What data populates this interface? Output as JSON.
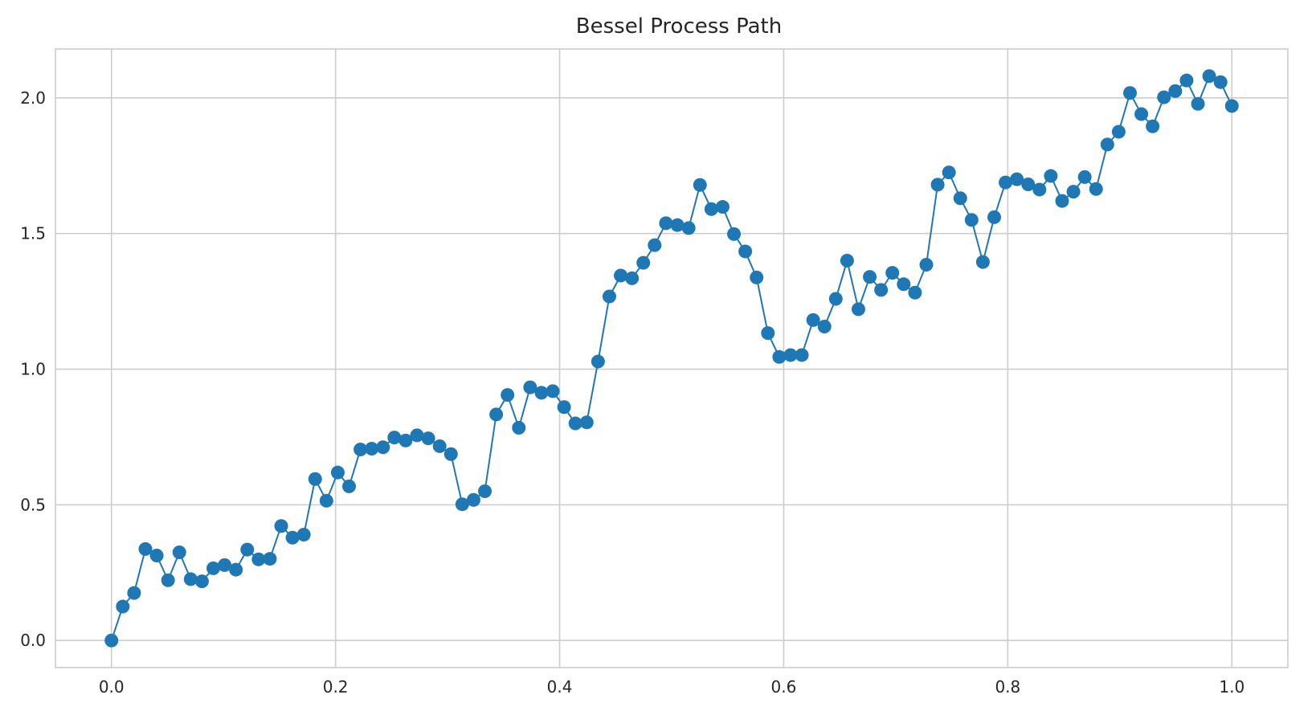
{
  "chart_data": {
    "type": "line",
    "title": "Bessel Process Path",
    "xlabel": "",
    "ylabel": "",
    "xlim": [
      -0.05,
      1.05
    ],
    "ylim": [
      -0.1,
      2.18
    ],
    "grid": true,
    "legend": "none",
    "x_ticks": [
      0.0,
      0.2,
      0.4,
      0.6,
      0.8,
      1.0
    ],
    "x_tick_labels": [
      "0.0",
      "0.2",
      "0.4",
      "0.6",
      "0.8",
      "1.0"
    ],
    "y_ticks": [
      0.0,
      0.5,
      1.0,
      1.5,
      2.0
    ],
    "y_tick_labels": [
      "0.0",
      "0.5",
      "1.0",
      "1.5",
      "2.0"
    ],
    "colors": {
      "series": "#1f77b4",
      "grid": "#cccccc",
      "text": "#262626"
    },
    "series": [
      {
        "marker": "circle",
        "x": [
          0.0,
          0.0101,
          0.0202,
          0.0303,
          0.0404,
          0.0505,
          0.0606,
          0.0707,
          0.0808,
          0.0909,
          0.101,
          0.1111,
          0.1212,
          0.1313,
          0.1414,
          0.1515,
          0.1616,
          0.1717,
          0.1818,
          0.1919,
          0.202,
          0.2121,
          0.2222,
          0.2323,
          0.2424,
          0.2525,
          0.2626,
          0.2727,
          0.2828,
          0.2929,
          0.303,
          0.3131,
          0.3232,
          0.3333,
          0.3434,
          0.3535,
          0.3636,
          0.3737,
          0.3838,
          0.3939,
          0.404,
          0.4141,
          0.4242,
          0.4343,
          0.4444,
          0.4545,
          0.4646,
          0.4747,
          0.4848,
          0.4949,
          0.5051,
          0.5152,
          0.5253,
          0.5354,
          0.5455,
          0.5556,
          0.5657,
          0.5758,
          0.5859,
          0.596,
          0.6061,
          0.6162,
          0.6263,
          0.6364,
          0.6465,
          0.6566,
          0.6667,
          0.6768,
          0.6869,
          0.697,
          0.7071,
          0.7172,
          0.7273,
          0.7374,
          0.7475,
          0.7576,
          0.7677,
          0.7778,
          0.7879,
          0.798,
          0.8081,
          0.8182,
          0.8283,
          0.8384,
          0.8485,
          0.8586,
          0.8687,
          0.8788,
          0.8889,
          0.899,
          0.9091,
          0.9192,
          0.9293,
          0.9394,
          0.9495,
          0.9596,
          0.9697,
          0.9798,
          0.9899,
          1.0
        ],
        "y": [
          0.0,
          0.125,
          0.175,
          0.337,
          0.313,
          0.222,
          0.325,
          0.226,
          0.218,
          0.266,
          0.278,
          0.261,
          0.335,
          0.299,
          0.301,
          0.422,
          0.379,
          0.39,
          0.595,
          0.515,
          0.619,
          0.568,
          0.704,
          0.707,
          0.712,
          0.748,
          0.737,
          0.756,
          0.745,
          0.716,
          0.687,
          0.502,
          0.518,
          0.55,
          0.833,
          0.905,
          0.784,
          0.933,
          0.913,
          0.919,
          0.86,
          0.8,
          0.804,
          1.028,
          1.268,
          1.345,
          1.335,
          1.392,
          1.457,
          1.538,
          1.531,
          1.52,
          1.679,
          1.59,
          1.598,
          1.498,
          1.434,
          1.338,
          1.133,
          1.045,
          1.052,
          1.052,
          1.181,
          1.157,
          1.259,
          1.4,
          1.221,
          1.34,
          1.292,
          1.355,
          1.313,
          1.282,
          1.385,
          1.68,
          1.725,
          1.63,
          1.55,
          1.395,
          1.56,
          1.688,
          1.7,
          1.681,
          1.662,
          1.712,
          1.62,
          1.654,
          1.708,
          1.664,
          1.828,
          1.875,
          2.018,
          1.94,
          1.895,
          2.002,
          2.025,
          2.064,
          1.978,
          2.08,
          2.058,
          1.97
        ]
      }
    ]
  }
}
